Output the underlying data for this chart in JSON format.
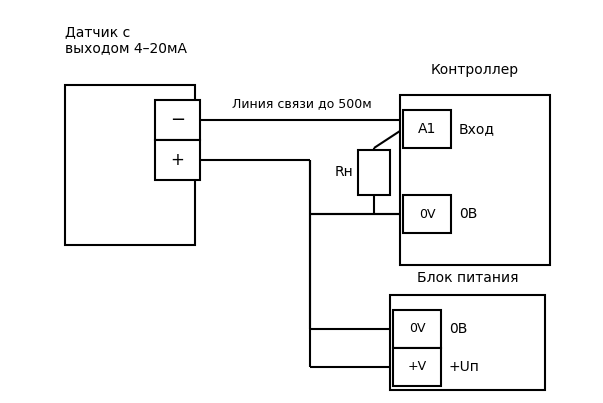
{
  "bg_color": "#ffffff",
  "line_color": "#000000",
  "box_color": "#ffffff",
  "text_color": "#000000",
  "title_sensor": "Датчик с\nвыходом 4–20мА",
  "title_controller": "Контроллер",
  "title_power": "Блок питания",
  "label_line": "Линия связи до 500м",
  "label_minus": "−",
  "label_plus": "+",
  "label_a1": "A1",
  "label_vhod": "Вход",
  "label_rn": "Rн",
  "label_0v_ctrl": "0V",
  "label_0b_ctrl": "0В",
  "label_0v_pwr": "0V",
  "label_0b_pwr": "0В",
  "label_plusv_pwr": "+V",
  "label_plusun_pwr": "+Uп"
}
